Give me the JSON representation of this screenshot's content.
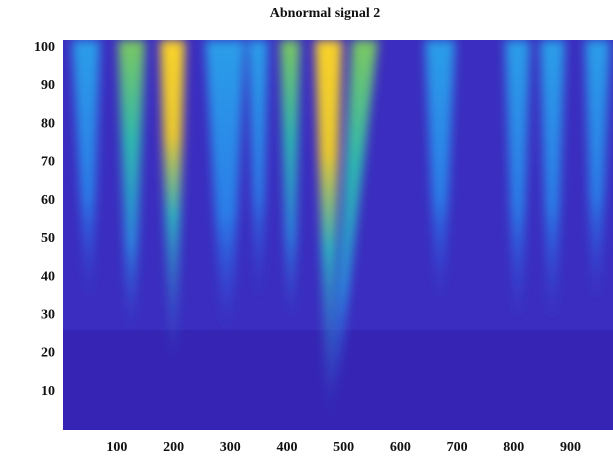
{
  "chart_data": {
    "type": "heatmap",
    "title": "Abnormal signal 2",
    "xlim": [
      5,
      975
    ],
    "xticks": [
      100,
      200,
      300,
      400,
      500,
      600,
      700,
      800,
      900
    ],
    "ylim": [
      0,
      102
    ],
    "yticks": [
      10,
      20,
      30,
      40,
      50,
      60,
      70,
      80,
      90,
      100
    ]
  }
}
